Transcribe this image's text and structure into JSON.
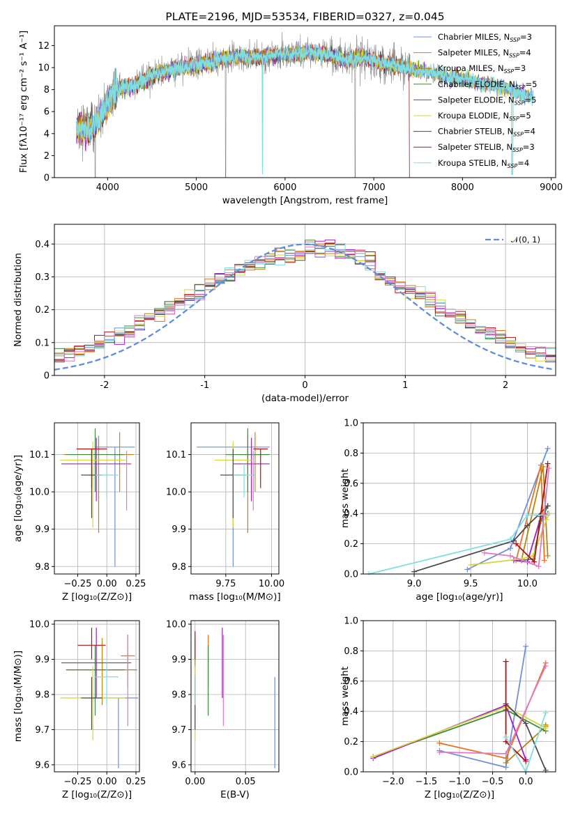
{
  "colors": [
    "#6b8fdc",
    "#e8731e",
    "#b8830e",
    "#3a8a3a",
    "#a020c0",
    "#d4d43a",
    "#4a4a4a",
    "#b01010",
    "#7fdedf"
  ],
  "aux_colors": {
    "pink": "#e377c2",
    "gray": "#808080",
    "darkgray": "#555555",
    "gaussian": "#5b8ee0"
  },
  "chart_data": [
    {
      "id": "spectrum",
      "type": "line",
      "title": "PLATE=2196, MJD=53534, FIBERID=0327, z=0.045",
      "xlabel": "wavelength [Angstrom, rest frame]",
      "ylabel": "Flux [fλ10⁻¹⁷ erg cm⁻² s⁻¹ A⁻¹]",
      "xlim": [
        3400,
        9050
      ],
      "ylim": [
        0,
        13.8
      ],
      "xticks": [
        4000,
        5000,
        6000,
        7000,
        8000,
        9000
      ],
      "yticks": [
        0,
        2,
        4,
        6,
        8,
        10,
        12
      ],
      "grid": false,
      "legend_position": "upper-right",
      "legend": [
        {
          "label": "Chabrier MILES, N",
          "sub": "SSP",
          "val": "=3"
        },
        {
          "label": "Salpeter MILES, N",
          "sub": "SSP",
          "val": "=4"
        },
        {
          "label": "Kroupa MILES, N",
          "sub": "SSP",
          "val": "=3"
        },
        {
          "label": "Chabrier ELODIE, N",
          "sub": "SSP",
          "val": "=5"
        },
        {
          "label": "Salpeter ELODIE, N",
          "sub": "SSP",
          "val": "=5"
        },
        {
          "label": "Kroupa ELODIE, N",
          "sub": "SSP",
          "val": "=5"
        },
        {
          "label": "Chabrier STELIB, N",
          "sub": "SSP",
          "val": "=4"
        },
        {
          "label": "Salpeter STELIB, N",
          "sub": "SSP",
          "val": "=3"
        },
        {
          "label": "Kroupa STELIB, N",
          "sub": "SSP",
          "val": "=4"
        }
      ],
      "continuum": {
        "x": [
          3650,
          3750,
          3850,
          3950,
          4050,
          4150,
          4300,
          4500,
          4700,
          4900,
          5100,
          5300,
          5500,
          5700,
          5900,
          6100,
          6300,
          6500,
          6700,
          6900,
          7100,
          7300,
          7420,
          7600,
          7800,
          8000,
          8200,
          8400,
          8600,
          8800
        ],
        "y": [
          4.6,
          4.3,
          4.8,
          5.9,
          7.5,
          8.2,
          8.4,
          9.3,
          9.8,
          10.1,
          10.4,
          10.8,
          11.0,
          10.9,
          11.1,
          11.3,
          11.4,
          11.1,
          10.7,
          10.9,
          10.4,
          10.1,
          9.9,
          9.7,
          9.2,
          9.0,
          8.6,
          8.3,
          7.8,
          7.3
        ]
      },
      "observed_range": [
        3650,
        7420
      ],
      "model_range": [
        3650,
        8800
      ]
    },
    {
      "id": "residuals",
      "type": "histogram",
      "xlabel": "(data-model)/error",
      "ylabel": "Normed distribution",
      "xlim": [
        -2.5,
        2.5
      ],
      "ylim": [
        0,
        0.46
      ],
      "xticks": [
        -2,
        -1,
        0,
        1,
        2
      ],
      "yticks": [
        0.0,
        0.1,
        0.2,
        0.3,
        0.4
      ],
      "grid": true,
      "legend_position": "upper-right",
      "legend": [
        {
          "label": "𝒩(0, 1)"
        }
      ],
      "bin_width": 0.1
    },
    {
      "id": "age-vs-Z",
      "type": "errorbar",
      "xlabel": "Z [log₁₀(Z/Z⊙)]",
      "ylabel": "age  [log₁₀(age/yr)]",
      "xlim": [
        -0.45,
        0.28
      ],
      "ylim": [
        9.78,
        10.185
      ],
      "xticks": [
        -0.25,
        0.0,
        0.25
      ],
      "xticklabels": [
        "−0.25",
        "0.00",
        "0.25"
      ],
      "yticks": [
        9.8,
        9.9,
        10.0,
        10.1
      ],
      "yticklabels": [
        "9.8",
        "9.9",
        "10.0",
        "10.1"
      ],
      "grid": true,
      "points": [
        {
          "x": 0.07,
          "y": 10.12,
          "xerr": 0.17,
          "yerr": [
            0.32,
            0.0
          ],
          "c": 0
        },
        {
          "x": 0.11,
          "y": 10.1,
          "xerr": 0.06,
          "yerr": [
            0.1,
            0.06
          ],
          "c": 1
        },
        {
          "x": -0.07,
          "y": 10.1,
          "xerr": 0.3,
          "yerr": [
            0.21,
            0.05
          ],
          "c": 2
        },
        {
          "x": -0.1,
          "y": 10.1,
          "xerr": 0.25,
          "yerr": [
            0.1,
            0.07
          ],
          "c": 3
        },
        {
          "x": -0.09,
          "y": 10.075,
          "xerr": 0.3,
          "yerr": [
            0.1,
            0.07
          ],
          "c": 4
        },
        {
          "x": -0.12,
          "y": 10.085,
          "xerr": 0.28,
          "yerr": [
            0.18,
            0.05
          ],
          "c": 5
        },
        {
          "x": -0.13,
          "y": 10.045,
          "xerr": 0.09,
          "yerr": [
            0.115,
            0.07
          ],
          "c": 6
        },
        {
          "x": -0.13,
          "y": 10.115,
          "xerr": 0.13,
          "yerr": [
            0.105,
            0.0
          ],
          "c": 7
        },
        {
          "x": 0.0,
          "y": 10.045,
          "xerr": 0.1,
          "yerr": [
            0.06,
            0.03
          ],
          "c": 8
        },
        {
          "x": 0.17,
          "y": 10.06,
          "xerr": 0.0,
          "yerr": [
            0.11,
            0.05
          ],
          "c": "pink"
        }
      ]
    },
    {
      "id": "age-vs-mass",
      "type": "errorbar",
      "xlabel": "mass [log₁₀(M/M⊙)]",
      "ylabel": "",
      "xlim": [
        9.56,
        10.04
      ],
      "ylim": [
        9.78,
        10.185
      ],
      "xticks": [
        9.75,
        10.0
      ],
      "xticklabels": [
        "9.75",
        "10.00"
      ],
      "yticks": [
        9.8,
        9.9,
        10.0,
        10.1
      ],
      "yticklabels": [
        "9.8",
        "9.9",
        "10.0",
        "10.1"
      ],
      "grid": true,
      "points": [
        {
          "x": 9.79,
          "y": 10.12,
          "xerr": 0.2,
          "yerr": [
            0.32,
            0.0
          ],
          "c": 0
        },
        {
          "x": 9.91,
          "y": 10.1,
          "xerr": 0.07,
          "yerr": [
            0.1,
            0.06
          ],
          "c": 1
        },
        {
          "x": 9.87,
          "y": 10.1,
          "xerr": 0.1,
          "yerr": [
            0.21,
            0.05
          ],
          "c": 2
        },
        {
          "x": 9.87,
          "y": 10.1,
          "xerr": 0.12,
          "yerr": [
            0.1,
            0.07
          ],
          "c": 3
        },
        {
          "x": 9.89,
          "y": 10.075,
          "xerr": 0.1,
          "yerr": [
            0.1,
            0.07
          ],
          "c": 4
        },
        {
          "x": 9.79,
          "y": 10.085,
          "xerr": 0.1,
          "yerr": [
            0.18,
            0.05
          ],
          "c": 5
        },
        {
          "x": 9.79,
          "y": 10.045,
          "xerr": 0.07,
          "yerr": [
            0.115,
            0.07
          ],
          "c": 6
        },
        {
          "x": 9.94,
          "y": 10.115,
          "xerr": 0.04,
          "yerr": [
            0.105,
            0.0
          ],
          "c": 7
        },
        {
          "x": 9.85,
          "y": 10.045,
          "xerr": 0.06,
          "yerr": [
            0.06,
            0.03
          ],
          "c": 8
        },
        {
          "x": 9.9,
          "y": 10.06,
          "xerr": 0.0,
          "yerr": [
            0.11,
            0.05
          ],
          "c": "pink"
        }
      ]
    },
    {
      "id": "weight-vs-age",
      "type": "line",
      "xlabel": "age  [log₁₀(age/yr)]",
      "ylabel": "mass weight",
      "xlim": [
        8.55,
        10.25
      ],
      "ylim": [
        0,
        1.0
      ],
      "xticks": [
        9.0,
        9.5,
        10.0
      ],
      "xticklabels": [
        "9.0",
        "9.5",
        "10.0"
      ],
      "yticks": [
        0.0,
        0.2,
        0.4,
        0.6,
        0.8,
        1.0
      ],
      "yticklabels": [
        "0.0",
        "0.2",
        "0.4",
        "0.6",
        "0.8",
        "1.0"
      ],
      "grid": true,
      "series": [
        {
          "c": 0,
          "x": [
            9.47,
            9.85,
            10.18
          ],
          "y": [
            0.03,
            0.17,
            0.83
          ]
        },
        {
          "c": 1,
          "x": [
            9.9,
            10.12,
            10.15
          ],
          "y": [
            0.09,
            0.72,
            0.09
          ]
        },
        {
          "c": 2,
          "x": [
            9.95,
            10.14,
            10.18
          ],
          "y": [
            0.1,
            0.71,
            0.12
          ]
        },
        {
          "c": 3,
          "x": [
            9.95,
            10.05,
            10.12,
            10.18
          ],
          "y": [
            0.09,
            0.1,
            0.35,
            0.45
          ]
        },
        {
          "c": 4,
          "x": [
            9.88,
            10.0,
            10.12,
            10.18
          ],
          "y": [
            0.09,
            0.08,
            0.38,
            0.4
          ]
        },
        {
          "c": 5,
          "x": [
            9.5,
            9.95,
            10.05,
            10.17,
            10.19
          ],
          "y": [
            0.06,
            0.1,
            0.12,
            0.36,
            0.4
          ]
        },
        {
          "c": 6,
          "x": [
            9.0,
            9.88,
            10.0,
            10.18
          ],
          "y": [
            0.015,
            0.22,
            0.32,
            0.45
          ]
        },
        {
          "c": 7,
          "x": [
            9.9,
            10.06,
            10.18
          ],
          "y": [
            0.2,
            0.08,
            0.73
          ]
        },
        {
          "c": 8,
          "x": [
            8.6,
            9.85,
            10.0,
            10.18
          ],
          "y": [
            0.0,
            0.23,
            0.39,
            0.39
          ]
        },
        {
          "c": "pink",
          "x": [
            9.62,
            9.85,
            10.1,
            10.19
          ],
          "y": [
            0.14,
            0.12,
            0.05,
            0.7
          ]
        }
      ]
    },
    {
      "id": "mass-vs-Z",
      "type": "errorbar",
      "xlabel": "Z [log₁₀(Z/Z⊙)]",
      "ylabel": "mass [log₁₀(M/M⊙)]",
      "xlim": [
        -0.45,
        0.28
      ],
      "ylim": [
        9.58,
        10.01
      ],
      "xticks": [
        -0.25,
        0.0,
        0.25
      ],
      "xticklabels": [
        "−0.25",
        "0.00",
        "0.25"
      ],
      "yticks": [
        9.6,
        9.7,
        9.8,
        9.9,
        10.0
      ],
      "yticklabels": [
        "9.6",
        "9.7",
        "9.8",
        "9.9",
        "10.0"
      ],
      "grid": true,
      "points": [
        {
          "x": 0.1,
          "y": 9.79,
          "xerr": 0.17,
          "yerr": [
            0.2,
            0.0
          ],
          "c": 0
        },
        {
          "x": 0.18,
          "y": 9.91,
          "xerr": 0.06,
          "yerr": [
            0.09,
            0.06
          ],
          "c": 1
        },
        {
          "x": -0.04,
          "y": 9.87,
          "xerr": 0.3,
          "yerr": [
            0.1,
            0.09
          ],
          "c": 2
        },
        {
          "x": -0.1,
          "y": 9.87,
          "xerr": 0.25,
          "yerr": [
            0.13,
            0.07
          ],
          "c": 3
        },
        {
          "x": -0.09,
          "y": 9.89,
          "xerr": 0.3,
          "yerr": [
            0.1,
            0.1
          ],
          "c": 4
        },
        {
          "x": -0.12,
          "y": 9.79,
          "xerr": 0.28,
          "yerr": [
            0.12,
            0.09
          ],
          "c": 5
        },
        {
          "x": -0.13,
          "y": 9.79,
          "xerr": 0.09,
          "yerr": [
            0.09,
            0.06
          ],
          "c": 6
        },
        {
          "x": -0.13,
          "y": 9.94,
          "xerr": 0.12,
          "yerr": [
            0.04,
            0.05
          ],
          "c": 7
        },
        {
          "x": 0.0,
          "y": 9.85,
          "xerr": 0.1,
          "yerr": [
            0.08,
            0.04
          ],
          "c": 8
        },
        {
          "x": 0.18,
          "y": 9.9,
          "xerr": 0.0,
          "yerr": [
            0.19,
            0.07
          ],
          "c": "pink"
        }
      ]
    },
    {
      "id": "mass-vs-EBV",
      "type": "errorbar",
      "xlabel": "E(B-V)",
      "ylabel": "",
      "xlim": [
        -0.004,
        0.083
      ],
      "ylim": [
        9.58,
        10.01
      ],
      "xticks": [
        0.0,
        0.05
      ],
      "xticklabels": [
        "0.00",
        "0.05"
      ],
      "yticks": [
        9.6,
        9.7,
        9.8,
        9.9,
        10.0
      ],
      "yticklabels": [
        "9.6",
        "9.7",
        "9.8",
        "9.9",
        "10.0"
      ],
      "grid": true,
      "points": [
        {
          "x": 0.079,
          "y": 9.79,
          "xerr": 0,
          "yerr": [
            0.2,
            0.06
          ],
          "c": 0
        },
        {
          "x": 0.013,
          "y": 9.91,
          "xerr": 0,
          "yerr": [
            0.09,
            0.06
          ],
          "c": 1
        },
        {
          "x": 0.0,
          "y": 9.87,
          "xerr": 0,
          "yerr": [
            0.1,
            0.09
          ],
          "c": 2
        },
        {
          "x": 0.013,
          "y": 9.87,
          "xerr": 0,
          "yerr": [
            0.13,
            0.07
          ],
          "c": 3
        },
        {
          "x": 0.027,
          "y": 9.89,
          "xerr": 0,
          "yerr": [
            0.1,
            0.1
          ],
          "c": 4
        },
        {
          "x": 0.0,
          "y": 9.79,
          "xerr": 0,
          "yerr": [
            0.12,
            0.09
          ],
          "c": 5
        },
        {
          "x": 0.0,
          "y": 9.79,
          "xerr": 0,
          "yerr": [
            0.09,
            0.06
          ],
          "c": 6
        },
        {
          "x": 0.0,
          "y": 9.94,
          "xerr": 0,
          "yerr": [
            0.04,
            0.04
          ],
          "c": 7
        },
        {
          "x": 0.0,
          "y": 9.85,
          "xerr": 0,
          "yerr": [
            0.08,
            0.0
          ],
          "c": 8
        },
        {
          "x": 0.028,
          "y": 9.9,
          "xerr": 0,
          "yerr": [
            0.19,
            0.07
          ],
          "c": "pink"
        }
      ]
    },
    {
      "id": "weight-vs-Z",
      "type": "line",
      "xlabel": "Z [log₁₀(Z/Z⊙)]",
      "ylabel": "mass weight",
      "xlim": [
        -2.45,
        0.45
      ],
      "ylim": [
        0,
        1.0
      ],
      "xticks": [
        -2.0,
        -1.5,
        -1.0,
        -0.5,
        0.0
      ],
      "xticklabels": [
        "−2.0",
        "−1.5",
        "−1.0",
        "−0.5",
        "0.0"
      ],
      "yticks": [
        0.0,
        0.2,
        0.4,
        0.6,
        0.8,
        1.0
      ],
      "yticklabels": [
        "0.0",
        "0.2",
        "0.4",
        "0.6",
        "0.8",
        "1.0"
      ],
      "grid": true,
      "series": [
        {
          "c": 0,
          "x": [
            -1.3,
            -0.3,
            0.0
          ],
          "y": [
            0.14,
            0.03,
            0.83
          ]
        },
        {
          "c": 1,
          "x": [
            -1.3,
            -0.3,
            0.3
          ],
          "y": [
            0.19,
            0.09,
            0.72
          ]
        },
        {
          "c": 2,
          "x": [
            -0.3,
            0.3,
            0.3
          ],
          "y": [
            0.06,
            0.3,
            0.31
          ]
        },
        {
          "c": 3,
          "x": [
            -2.3,
            -0.3,
            0.3
          ],
          "y": [
            0.1,
            0.41,
            0.27
          ]
        },
        {
          "c": 4,
          "x": [
            -2.3,
            -0.3,
            0.0
          ],
          "y": [
            0.09,
            0.44,
            0.08
          ]
        },
        {
          "c": 5,
          "x": [
            -2.3,
            -0.3,
            0.3
          ],
          "y": [
            0.1,
            0.43,
            0.29
          ]
        },
        {
          "c": 6,
          "x": [
            -0.3,
            0.0,
            0.3
          ],
          "y": [
            0.45,
            0.32,
            0.01
          ]
        },
        {
          "c": 7,
          "x": [
            -0.3,
            -0.3,
            0.0
          ],
          "y": [
            0.73,
            0.2,
            0.07
          ]
        },
        {
          "c": 8,
          "x": [
            -0.3,
            0.0,
            0.3
          ],
          "y": [
            0.23,
            0.0,
            0.39
          ]
        },
        {
          "c": "pink",
          "x": [
            -1.3,
            -0.3,
            0.3
          ],
          "y": [
            0.13,
            0.12,
            0.7
          ]
        }
      ]
    }
  ]
}
